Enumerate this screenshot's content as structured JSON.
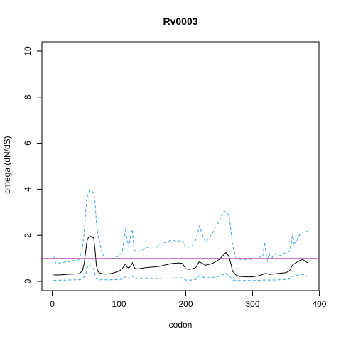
{
  "chart_data": {
    "type": "line",
    "title": "Rv0003",
    "xlabel": "codon",
    "ylabel": "omega (dN/dS)",
    "xlim": [
      0,
      400
    ],
    "ylim": [
      0,
      10
    ],
    "xticks": [
      0,
      100,
      200,
      300,
      400
    ],
    "yticks": [
      0,
      2,
      4,
      6,
      8,
      10
    ],
    "grid": false,
    "reference_line": {
      "y": 1,
      "color": "#cc66cc"
    },
    "series": [
      {
        "role": "upper-bound",
        "style": "dashed",
        "color": "#3ba3e0",
        "x": [
          2,
          5,
          10,
          15,
          20,
          25,
          30,
          35,
          40,
          45,
          48,
          50,
          52,
          54,
          56,
          58,
          60,
          62,
          64,
          66,
          68,
          70,
          75,
          80,
          85,
          90,
          95,
          100,
          105,
          108,
          110,
          112,
          115,
          118,
          120,
          122,
          124,
          126,
          130,
          135,
          140,
          145,
          150,
          155,
          160,
          165,
          170,
          175,
          180,
          185,
          190,
          195,
          200,
          205,
          210,
          215,
          218,
          220,
          222,
          225,
          228,
          230,
          235,
          240,
          245,
          250,
          255,
          258,
          260,
          262,
          265,
          268,
          270,
          275,
          280,
          285,
          290,
          295,
          300,
          305,
          310,
          315,
          318,
          320,
          322,
          325,
          328,
          330,
          335,
          340,
          345,
          350,
          355,
          358,
          360,
          362,
          365,
          370,
          375,
          380,
          383
        ],
        "y": [
          1.1,
          0.8,
          0.8,
          0.8,
          0.85,
          0.85,
          0.9,
          0.9,
          0.95,
          1.4,
          2.2,
          3.0,
          3.6,
          3.85,
          3.95,
          3.9,
          3.9,
          3.85,
          3.5,
          2.6,
          2.1,
          1.8,
          1.2,
          1.0,
          1.0,
          1.0,
          1.05,
          1.1,
          1.3,
          1.9,
          2.3,
          1.8,
          1.5,
          2.1,
          2.25,
          1.5,
          1.3,
          1.35,
          1.3,
          1.35,
          1.5,
          1.45,
          1.4,
          1.45,
          1.6,
          1.65,
          1.7,
          1.75,
          1.8,
          1.75,
          1.75,
          1.8,
          1.45,
          1.5,
          1.55,
          1.8,
          2.1,
          2.4,
          2.3,
          2.0,
          1.8,
          1.7,
          1.9,
          2.1,
          2.4,
          2.6,
          3.0,
          3.05,
          3.0,
          3.0,
          2.8,
          2.1,
          1.6,
          1.0,
          0.95,
          0.95,
          0.95,
          0.95,
          0.95,
          1.0,
          1.05,
          1.05,
          1.7,
          1.3,
          0.9,
          1.2,
          0.9,
          1.1,
          1.2,
          1.1,
          1.2,
          1.25,
          1.3,
          1.65,
          2.1,
          1.65,
          1.7,
          2.0,
          2.15,
          2.15,
          2.2
        ]
      },
      {
        "role": "estimate",
        "style": "solid",
        "color": "#000000",
        "x": [
          2,
          10,
          20,
          30,
          40,
          45,
          48,
          50,
          52,
          54,
          56,
          58,
          60,
          62,
          64,
          66,
          68,
          70,
          75,
          80,
          85,
          90,
          95,
          100,
          105,
          108,
          110,
          112,
          115,
          118,
          120,
          122,
          124,
          130,
          140,
          150,
          160,
          170,
          180,
          190,
          195,
          200,
          205,
          210,
          215,
          220,
          225,
          230,
          240,
          250,
          255,
          258,
          260,
          262,
          265,
          268,
          270,
          275,
          280,
          290,
          300,
          310,
          315,
          320,
          325,
          330,
          340,
          350,
          355,
          360,
          365,
          370,
          375,
          380,
          383
        ],
        "y": [
          0.28,
          0.28,
          0.3,
          0.32,
          0.33,
          0.45,
          0.8,
          1.3,
          1.75,
          1.9,
          1.95,
          1.95,
          1.9,
          1.9,
          1.4,
          0.7,
          0.45,
          0.38,
          0.33,
          0.32,
          0.33,
          0.35,
          0.4,
          0.45,
          0.55,
          0.7,
          0.75,
          0.62,
          0.58,
          0.7,
          0.8,
          0.65,
          0.55,
          0.55,
          0.6,
          0.62,
          0.65,
          0.72,
          0.78,
          0.8,
          0.78,
          0.55,
          0.52,
          0.55,
          0.6,
          0.85,
          0.78,
          0.7,
          0.78,
          0.95,
          1.1,
          1.2,
          1.25,
          1.2,
          1.05,
          0.72,
          0.45,
          0.28,
          0.22,
          0.2,
          0.2,
          0.25,
          0.3,
          0.35,
          0.3,
          0.32,
          0.35,
          0.38,
          0.45,
          0.72,
          0.8,
          0.9,
          0.95,
          0.85,
          0.8
        ]
      },
      {
        "role": "lower-bound",
        "style": "dashed",
        "color": "#3ba3e0",
        "x": [
          2,
          10,
          20,
          30,
          40,
          45,
          50,
          52,
          54,
          56,
          58,
          60,
          62,
          64,
          66,
          70,
          75,
          80,
          90,
          100,
          105,
          108,
          110,
          112,
          115,
          118,
          120,
          122,
          125,
          130,
          140,
          150,
          160,
          170,
          180,
          190,
          195,
          200,
          210,
          215,
          220,
          225,
          230,
          240,
          250,
          255,
          258,
          260,
          262,
          265,
          268,
          270,
          280,
          290,
          300,
          310,
          320,
          330,
          340,
          350,
          355,
          360,
          365,
          370,
          375,
          380,
          383
        ],
        "y": [
          0.05,
          0.05,
          0.06,
          0.07,
          0.07,
          0.1,
          0.3,
          0.55,
          0.7,
          0.7,
          0.65,
          0.6,
          0.55,
          0.3,
          0.12,
          0.07,
          0.07,
          0.07,
          0.07,
          0.08,
          0.1,
          0.15,
          0.22,
          0.15,
          0.12,
          0.2,
          0.25,
          0.15,
          0.12,
          0.12,
          0.12,
          0.12,
          0.13,
          0.14,
          0.15,
          0.16,
          0.15,
          0.06,
          0.06,
          0.08,
          0.25,
          0.2,
          0.15,
          0.17,
          0.22,
          0.28,
          0.32,
          0.35,
          0.32,
          0.25,
          0.12,
          0.06,
          0.04,
          0.04,
          0.04,
          0.05,
          0.06,
          0.06,
          0.07,
          0.08,
          0.1,
          0.22,
          0.25,
          0.3,
          0.3,
          0.25,
          0.22
        ]
      }
    ]
  }
}
